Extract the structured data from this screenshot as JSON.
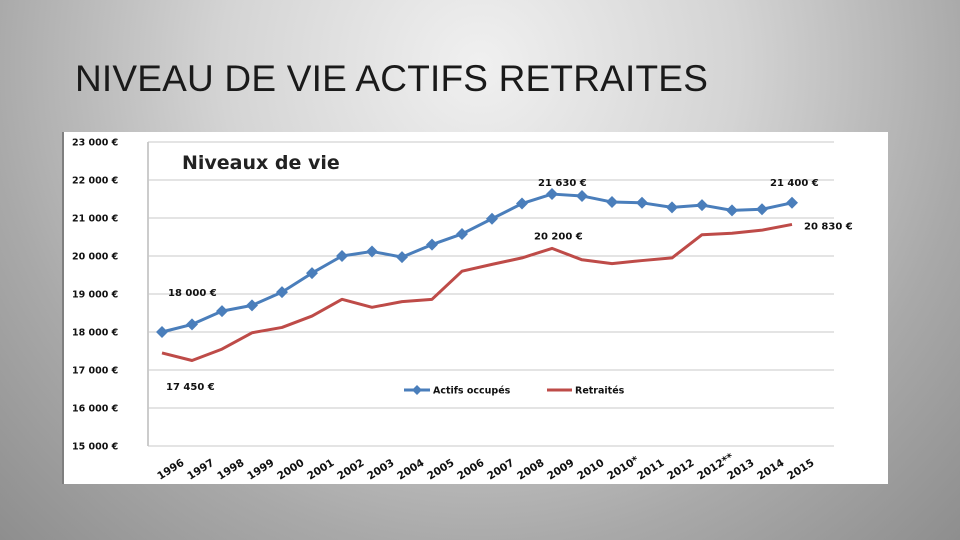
{
  "slide": {
    "title": "NIVEAU DE VIE ACTIFS RETRAITES"
  },
  "chart_data": {
    "type": "line",
    "title": "Niveaux de vie",
    "categories": [
      "1996",
      "1997",
      "1998",
      "1999",
      "2000",
      "2001",
      "2002",
      "2003",
      "2004",
      "2005",
      "2006",
      "2007",
      "2008",
      "2009",
      "2010",
      "2010*",
      "2011",
      "2012",
      "2012**",
      "2013",
      "2014",
      "2015"
    ],
    "y_tick_labels": [
      "23 000 €",
      "22 000 €",
      "21 000 €",
      "20 000 €",
      "19 000 €",
      "18 000 €",
      "17 000 €",
      "16 000 €",
      "15 000 €"
    ],
    "ylim": [
      15000,
      23000
    ],
    "grid": "horizontal",
    "legend_position": "bottom",
    "series": [
      {
        "name": "Actifs occupés",
        "color": "#4a7ebb",
        "marker": "diamond",
        "values": [
          18000,
          18200,
          18550,
          18700,
          19050,
          19550,
          20000,
          20120,
          19970,
          20300,
          20580,
          20980,
          21380,
          21630,
          21580,
          21420,
          21400,
          21280,
          21340,
          21200,
          21230,
          21400
        ]
      },
      {
        "name": "Retraités",
        "color": "#be4b48",
        "marker": "none",
        "values": [
          17450,
          17250,
          17550,
          17980,
          18120,
          18420,
          18860,
          18650,
          18800,
          18860,
          19600,
          19780,
          19950,
          20200,
          19900,
          19800,
          19880,
          19950,
          20560,
          20600,
          20680,
          20830
        ]
      }
    ],
    "annotations": [
      {
        "text": "18 000 €",
        "series": 0,
        "index": 0
      },
      {
        "text": "17 450 €",
        "series": 1,
        "index": 0
      },
      {
        "text": "21 630 €",
        "series": 0,
        "index": 13
      },
      {
        "text": "20 200 €",
        "series": 1,
        "index": 13
      },
      {
        "text": "21 400 €",
        "series": 0,
        "index": 21
      },
      {
        "text": "20 830 €",
        "series": 1,
        "index": 21
      }
    ]
  }
}
